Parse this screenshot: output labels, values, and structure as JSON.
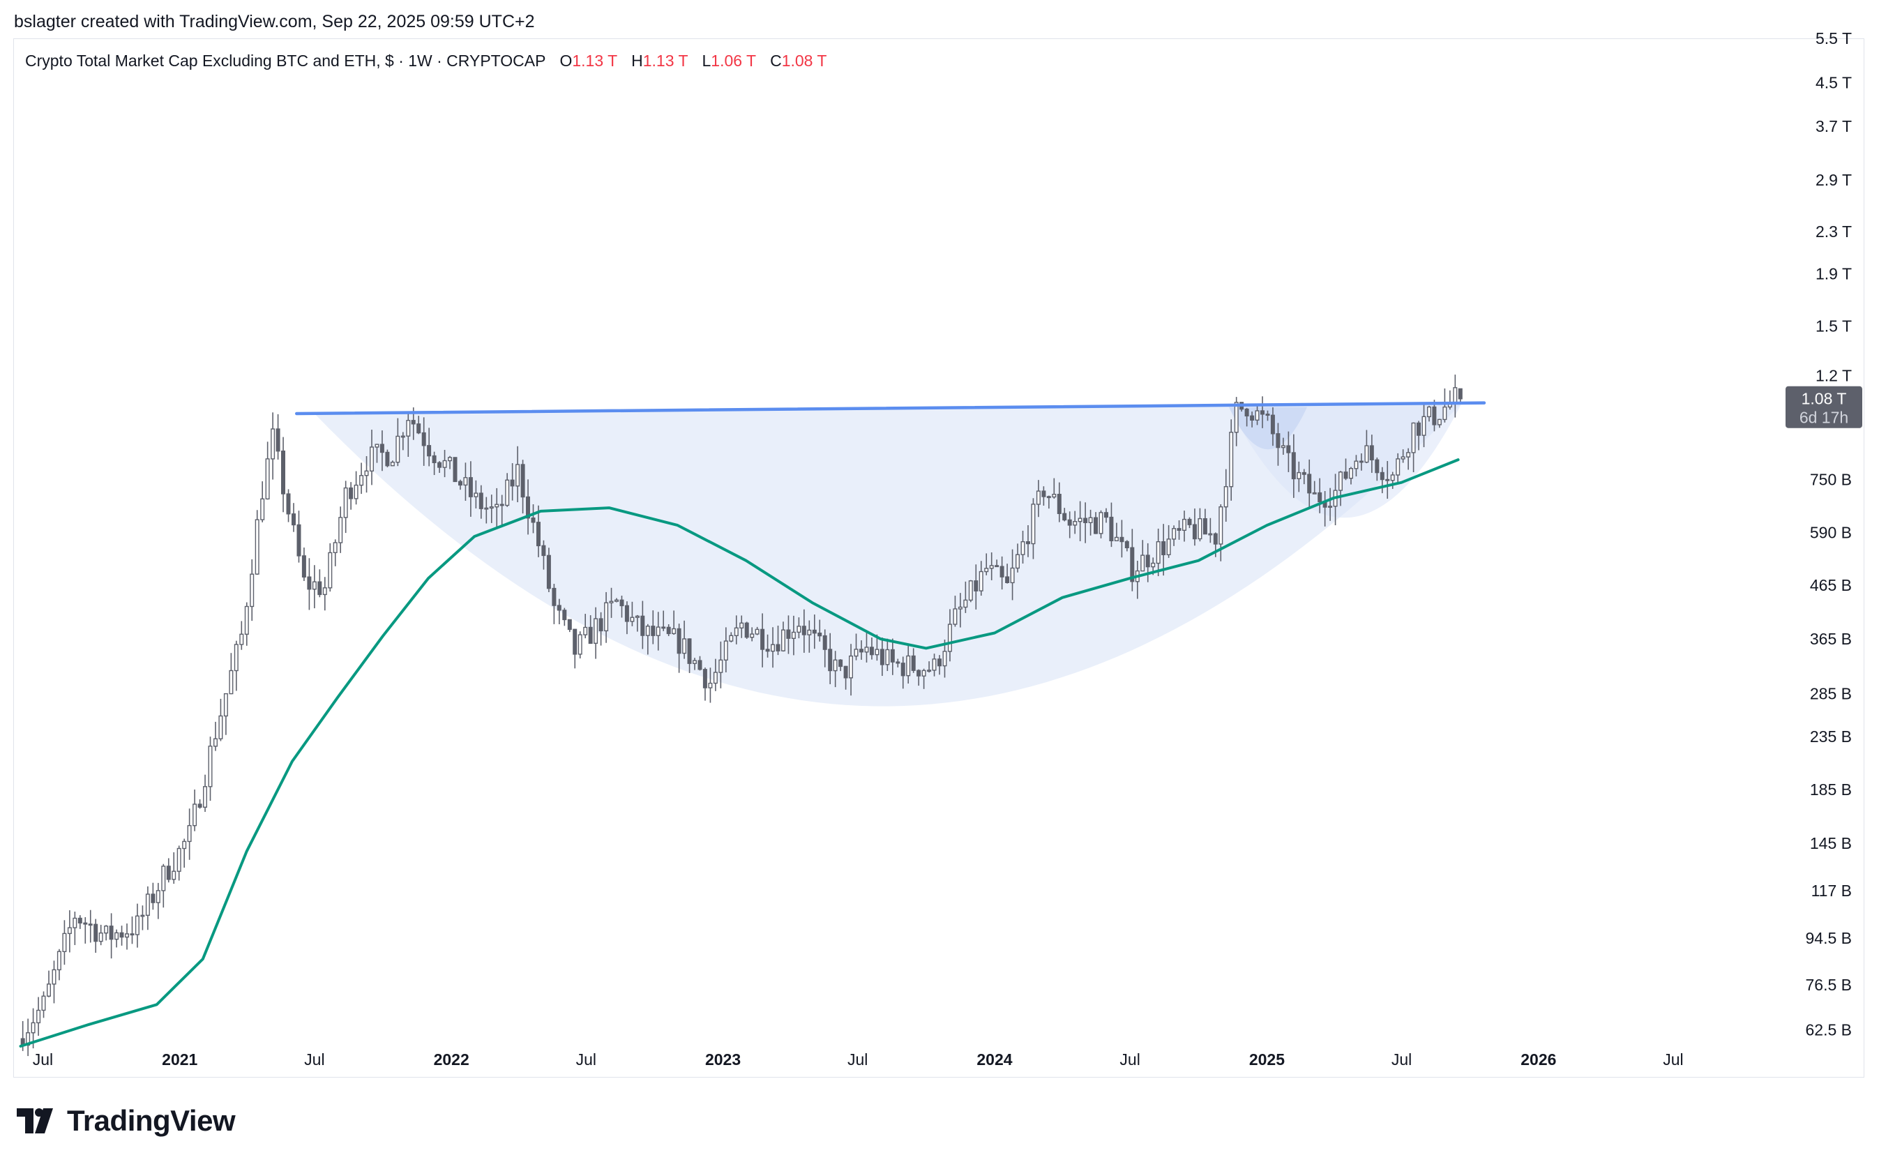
{
  "attribution": "bslagter created with TradingView.com, Sep 22, 2025 09:59 UTC+2",
  "legend": {
    "symbol": "Crypto Total Market Cap Excluding BTC and ETH, $ · 1W · CRYPTOCAP",
    "o_label": "O",
    "o_value": "1.13 T",
    "h_label": "H",
    "h_value": "1.13 T",
    "l_label": "L",
    "l_value": "1.06 T",
    "c_label": "C",
    "c_value": "1.08 T"
  },
  "price_badge": {
    "price": "1.08 T",
    "countdown": "6d 17h"
  },
  "brand": "TradingView",
  "colors": {
    "candle": "#5d606b",
    "ma": "#089981",
    "resistance": "#5b8def",
    "cup_fill": "#dbe4f7",
    "badge": "#5d606b",
    "legend_value": "#f23645"
  },
  "chart_data": {
    "type": "candlestick",
    "title": "Crypto Total Market Cap Excluding BTC and ETH, $ · 1W · CRYPTOCAP",
    "y_scale": "log",
    "y_unit": "USD",
    "y_range": [
      58000000000.0,
      5500000000000.0
    ],
    "x_range": [
      "2020-05-25",
      "2026-09-15"
    ],
    "y_ticks": [
      {
        "label": "62.5 B",
        "value": 62500000000.0
      },
      {
        "label": "76.5 B",
        "value": 76500000000.0
      },
      {
        "label": "94.5 B",
        "value": 94500000000.0
      },
      {
        "label": "117 B",
        "value": 117000000000.0
      },
      {
        "label": "145 B",
        "value": 145000000000.0
      },
      {
        "label": "185 B",
        "value": 185000000000.0
      },
      {
        "label": "235 B",
        "value": 235000000000.0
      },
      {
        "label": "285 B",
        "value": 285000000000.0
      },
      {
        "label": "365 B",
        "value": 365000000000.0
      },
      {
        "label": "465 B",
        "value": 465000000000.0
      },
      {
        "label": "590 B",
        "value": 590000000000.0
      },
      {
        "label": "750 B",
        "value": 750000000000.0
      },
      {
        "label": "1.2 T",
        "value": 1200000000000.0
      },
      {
        "label": "1.5 T",
        "value": 1500000000000.0
      },
      {
        "label": "1.9 T",
        "value": 1900000000000.0
      },
      {
        "label": "2.3 T",
        "value": 2300000000000.0
      },
      {
        "label": "2.9 T",
        "value": 2900000000000.0
      },
      {
        "label": "3.7 T",
        "value": 3700000000000.0
      },
      {
        "label": "4.5 T",
        "value": 4500000000000.0
      },
      {
        "label": "5.5 T",
        "value": 5500000000000.0
      }
    ],
    "x_ticks": [
      {
        "label": "Jul",
        "date": "2020-07-01",
        "bold": false
      },
      {
        "label": "2021",
        "date": "2021-01-01",
        "bold": true
      },
      {
        "label": "Jul",
        "date": "2021-07-01",
        "bold": false
      },
      {
        "label": "2022",
        "date": "2022-01-01",
        "bold": true
      },
      {
        "label": "Jul",
        "date": "2022-07-01",
        "bold": false
      },
      {
        "label": "2023",
        "date": "2023-01-01",
        "bold": true
      },
      {
        "label": "Jul",
        "date": "2023-07-01",
        "bold": false
      },
      {
        "label": "2024",
        "date": "2024-01-01",
        "bold": true
      },
      {
        "label": "Jul",
        "date": "2024-07-01",
        "bold": false
      },
      {
        "label": "2025",
        "date": "2025-01-01",
        "bold": true
      },
      {
        "label": "Jul",
        "date": "2025-07-01",
        "bold": false
      },
      {
        "label": "2026",
        "date": "2026-01-01",
        "bold": true
      },
      {
        "label": "Jul",
        "date": "2026-07-01",
        "bold": false
      }
    ],
    "price_path": [
      [
        "2020-06-01",
        60000000000.0
      ],
      [
        "2020-07-06",
        70000000000.0
      ],
      [
        "2020-08-17",
        105000000000.0
      ],
      [
        "2020-09-28",
        95000000000.0
      ],
      [
        "2020-11-09",
        100000000000.0
      ],
      [
        "2020-12-14",
        125000000000.0
      ],
      [
        "2021-01-18",
        150000000000.0
      ],
      [
        "2021-02-22",
        240000000000.0
      ],
      [
        "2021-03-29",
        370000000000.0
      ],
      [
        "2021-04-26",
        720000000000.0
      ],
      [
        "2021-05-10",
        900000000000.0
      ],
      [
        "2021-05-31",
        650000000000.0
      ],
      [
        "2021-06-21",
        470000000000.0
      ],
      [
        "2021-07-19",
        460000000000.0
      ],
      [
        "2021-08-16",
        700000000000.0
      ],
      [
        "2021-09-13",
        820000000000.0
      ],
      [
        "2021-10-18",
        850000000000.0
      ],
      [
        "2021-11-08",
        1010000000000.0
      ],
      [
        "2021-12-06",
        870000000000.0
      ],
      [
        "2022-01-10",
        760000000000.0
      ],
      [
        "2022-02-07",
        680000000000.0
      ],
      [
        "2022-03-07",
        640000000000.0
      ],
      [
        "2022-04-04",
        780000000000.0
      ],
      [
        "2022-05-02",
        560000000000.0
      ],
      [
        "2022-05-23",
        420000000000.0
      ],
      [
        "2022-06-20",
        345000000000.0
      ],
      [
        "2022-08-15",
        430000000000.0
      ],
      [
        "2022-09-19",
        375000000000.0
      ],
      [
        "2022-11-07",
        360000000000.0
      ],
      [
        "2022-12-19",
        300000000000.0
      ],
      [
        "2023-01-30",
        390000000000.0
      ],
      [
        "2023-03-13",
        360000000000.0
      ],
      [
        "2023-04-17",
        395000000000.0
      ],
      [
        "2023-06-12",
        310000000000.0
      ],
      [
        "2023-07-17",
        350000000000.0
      ],
      [
        "2023-08-21",
        325000000000.0
      ],
      [
        "2023-10-16",
        320000000000.0
      ],
      [
        "2023-11-13",
        400000000000.0
      ],
      [
        "2023-12-25",
        500000000000.0
      ],
      [
        "2024-01-22",
        460000000000.0
      ],
      [
        "2024-03-11",
        720000000000.0
      ],
      [
        "2024-04-15",
        620000000000.0
      ],
      [
        "2024-06-03",
        620000000000.0
      ],
      [
        "2024-07-08",
        500000000000.0
      ],
      [
        "2024-08-05",
        540000000000.0
      ],
      [
        "2024-09-23",
        600000000000.0
      ],
      [
        "2024-10-28",
        580000000000.0
      ],
      [
        "2024-11-25",
        1020000000000.0
      ],
      [
        "2024-12-09",
        1050000000000.0
      ],
      [
        "2025-01-06",
        960000000000.0
      ],
      [
        "2025-02-03",
        800000000000.0
      ],
      [
        "2025-03-10",
        690000000000.0
      ],
      [
        "2025-04-07",
        710000000000.0
      ],
      [
        "2025-05-12",
        860000000000.0
      ],
      [
        "2025-06-23",
        760000000000.0
      ],
      [
        "2025-07-21",
        950000000000.0
      ],
      [
        "2025-08-18",
        1000000000000.0
      ],
      [
        "2025-09-15",
        1080000000000.0
      ]
    ],
    "series": [
      {
        "type": "moving-average",
        "points": [
          [
            "2020-06-01",
            58000000000.0
          ],
          [
            "2020-09-01",
            64000000000.0
          ],
          [
            "2020-12-01",
            70000000000.0
          ],
          [
            "2021-02-01",
            86000000000.0
          ],
          [
            "2021-04-01",
            140000000000.0
          ],
          [
            "2021-06-01",
            210000000000.0
          ],
          [
            "2021-08-01",
            280000000000.0
          ],
          [
            "2021-10-01",
            370000000000.0
          ],
          [
            "2021-12-01",
            480000000000.0
          ],
          [
            "2022-02-01",
            580000000000.0
          ],
          [
            "2022-05-01",
            650000000000.0
          ],
          [
            "2022-08-01",
            660000000000.0
          ],
          [
            "2022-11-01",
            610000000000.0
          ],
          [
            "2023-02-01",
            520000000000.0
          ],
          [
            "2023-05-01",
            430000000000.0
          ],
          [
            "2023-08-01",
            365000000000.0
          ],
          [
            "2023-10-01",
            350000000000.0
          ],
          [
            "2024-01-01",
            375000000000.0
          ],
          [
            "2024-04-01",
            440000000000.0
          ],
          [
            "2024-07-01",
            480000000000.0
          ],
          [
            "2024-10-01",
            520000000000.0
          ],
          [
            "2025-01-01",
            610000000000.0
          ],
          [
            "2025-04-01",
            690000000000.0
          ],
          [
            "2025-07-01",
            740000000000.0
          ],
          [
            "2025-09-15",
            820000000000.0
          ]
        ]
      }
    ],
    "annotations": {
      "resistance_line": {
        "start": [
          "2021-06-07",
          1010000000000.0
        ],
        "end": [
          "2025-10-20",
          1060000000000.0
        ]
      },
      "large_cup": {
        "start": [
          "2021-07-01",
          1010000000000.0
        ],
        "bottom": [
          "2023-07-01",
          270000000000.0
        ],
        "end": [
          "2025-09-20",
          1060000000000.0
        ]
      },
      "handle_cup": {
        "start": [
          "2024-11-11",
          1040000000000.0
        ],
        "bottom": [
          "2025-03-20",
          640000000000.0
        ],
        "end": [
          "2025-09-20",
          1060000000000.0
        ]
      },
      "small_cup": {
        "start": [
          "2024-11-11",
          1040000000000.0
        ],
        "bottom": [
          "2025-01-05",
          860000000000.0
        ],
        "end": [
          "2025-02-24",
          1040000000000.0
        ]
      }
    }
  }
}
